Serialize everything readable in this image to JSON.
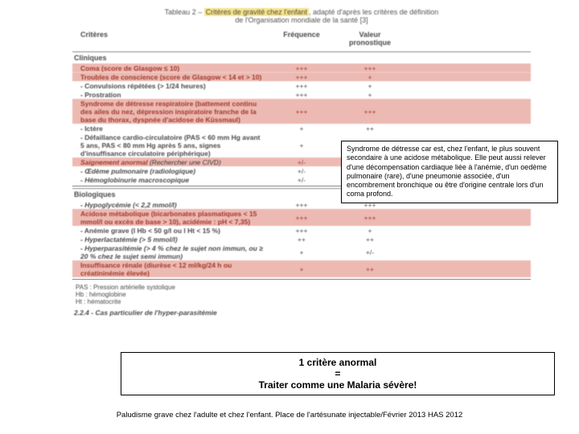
{
  "title": {
    "prefix": "Tableau 2 – ",
    "highlighted": "Critères de gravité chez l'enfant",
    "suffix": ", adapté d'après les critères de définition",
    "line2": "de l'Organisation mondiale de la santé [3]"
  },
  "headers": {
    "col1": "Critères",
    "col2": "Fréquence",
    "col3": "Valeur pronostique"
  },
  "sections": {
    "cliniques": "Cliniques",
    "biologiques": "Biologiques"
  },
  "rows_clin": [
    {
      "c1": "Coma (score de Glasgow ≤ 10)",
      "c2": "+++",
      "c3": "+++",
      "pink": true,
      "bold": true
    },
    {
      "c1": "Troubles de conscience (score de Glasgow < 14 et > 10)",
      "c2": "+++",
      "c3": "+",
      "pink": true,
      "bold": true
    },
    {
      "c1": "- Convulsions répétées (> 1/24 heures)",
      "c2": "+++",
      "c3": "+",
      "pink": false,
      "bold": true
    },
    {
      "c1": "- Prostration",
      "c2": "+++",
      "c3": "+",
      "pink": false,
      "bold": true
    },
    {
      "c1": "Syndrome de détresse respiratoire (battement continu des ailes du nez, dépression inspiratoire franche de la base du thorax, dyspnée d'acidose de Küssmaul)",
      "c2": "+++",
      "c3": "+++",
      "pink": true,
      "bold": true
    },
    {
      "c1": "- Ictère",
      "c2": "+",
      "c3": "++",
      "pink": false,
      "bold": true
    },
    {
      "c1": "- Défaillance cardio-circulatoire (PAS < 60 mm Hg avant 5 ans, PAS < 80 mm Hg après 5 ans, signes d'insuffisance circulatoire périphérique)",
      "c2": "+",
      "c3": "+++",
      "pink": false,
      "bold": true
    },
    {
      "c1": "Saignement anormal",
      "c2": "+/-",
      "c3": "+++",
      "pink": true,
      "ibold": true,
      "note": "(Rechercher une CIVD)"
    },
    {
      "c1": "- Œdème pulmonaire (radiologique)",
      "c2": "+/-",
      "c3": "+++",
      "pink": false,
      "ibold": true
    },
    {
      "c1": "- Hémoglobinurie macroscopique",
      "c2": "+/-",
      "c3": "+",
      "pink": false,
      "ibold": true
    }
  ],
  "rows_bio": [
    {
      "c1": "- Hypoglycémie (< 2,2 mmol/l)",
      "c2": "+++",
      "c3": "+++",
      "pink": false,
      "ibold": true
    },
    {
      "c1": "Acidose métabolique (bicarbonates plasmatiques < 15 mmol/l ou excès de base > 10), acidémie : pH < 7,35)",
      "c2": "+++",
      "c3": "+++",
      "pink": true,
      "bold": true
    },
    {
      "c1": "- Anémie grave (l Hb < 50 g/l ou l Ht < 15 %)",
      "c2": "+++",
      "c3": "+",
      "pink": false,
      "bold": true
    },
    {
      "c1": "- Hyperlactatémie (> 5 mmol/l)",
      "c2": "++",
      "c3": "++",
      "pink": false,
      "ibold": true
    },
    {
      "c1": "- Hyperparasitémie (> 4 % chez le sujet non immun, ou ≥ 20 % chez le sujet semi immun)",
      "c2": "+",
      "c3": "+/-",
      "pink": false,
      "ibold": true
    },
    {
      "c1": "Insuffisance rénale (diurèse < 12 ml/kg/24 h ou créatininémie élevée)",
      "c2": "+",
      "c3": "++",
      "pink": true,
      "bold": true
    }
  ],
  "defs": {
    "l1": "PAS : Pression artérielle systolique",
    "l2": "Hb : hémoglobine",
    "l3": "Ht : hématocrite"
  },
  "subhead": "2.2.4 - Cas particulier de l'hyper-parasitémie",
  "callout1": "Syndrome de détresse car est, chez l'enfant, le plus souvent secondaire à une acidose métabolique. Elle peut aussi relever d'une décompensation cardiaque liée à l'anémie, d'un oedème pulmonaire (rare), d'une pneumonie associée, d'un encombrement bronchique ou être d'origine centrale lors d'un coma profond.",
  "callout2": {
    "l1": "1 critère anormal",
    "l2": "=",
    "l3": "Traiter comme une Malaria sévère!"
  },
  "footer": "Paludisme grave chez l'adulte et chez l'enfant. Place de l'artésunate injectable/Février 2013 HAS 2012"
}
